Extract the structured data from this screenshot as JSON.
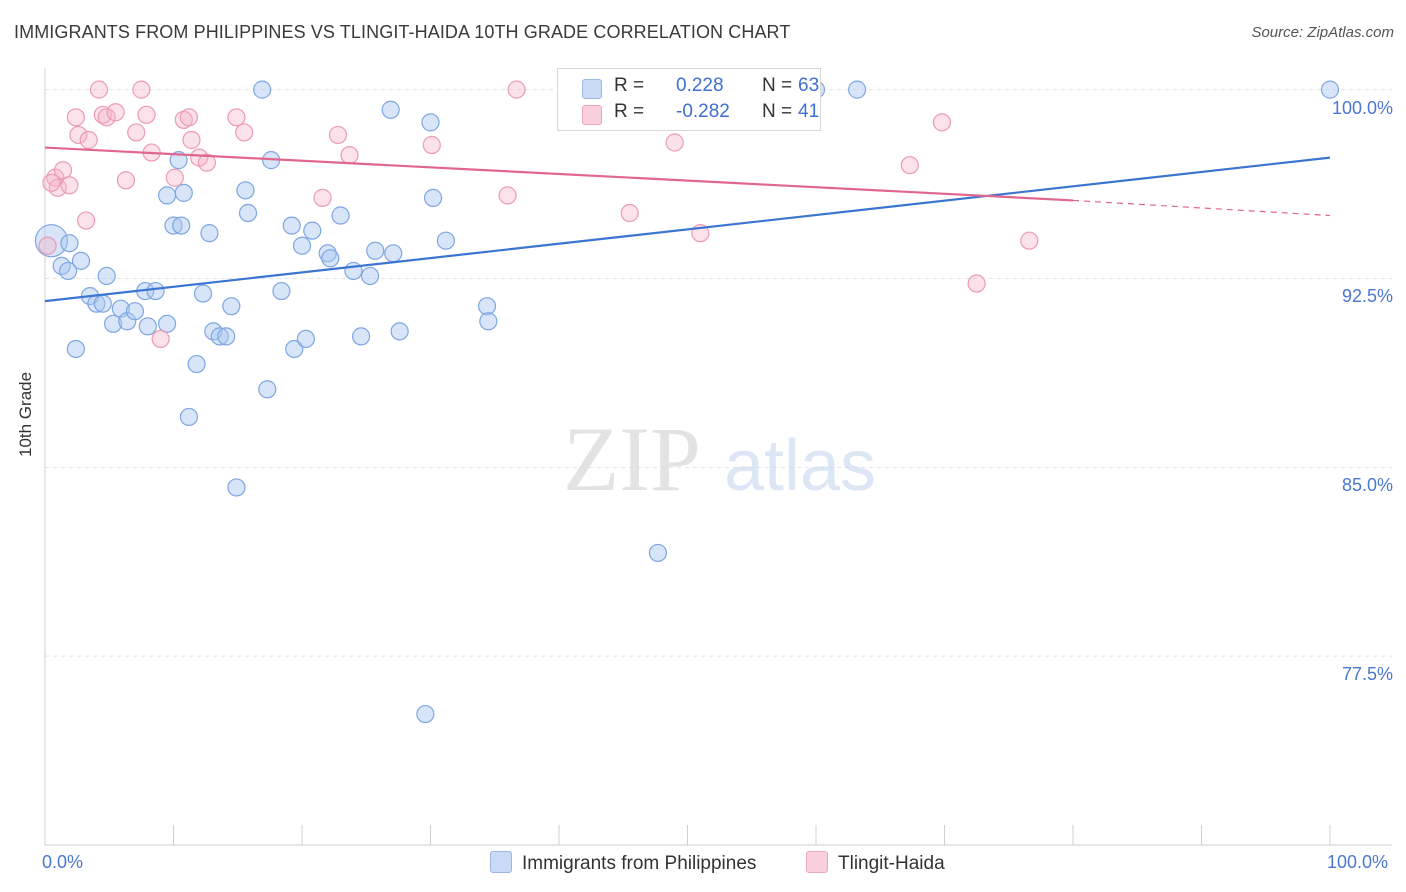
{
  "header": {
    "title": "IMMIGRANTS FROM PHILIPPINES VS TLINGIT-HAIDA 10TH GRADE CORRELATION CHART",
    "source": "Source: ZipAtlas.com"
  },
  "watermark": {
    "zip": "ZIP",
    "atlas": "atlas"
  },
  "legend": {
    "rows": [
      {
        "r_label": "R =",
        "r_value": "0.228",
        "n_label": "N =",
        "n_value": "63",
        "color": "#a9c5ef"
      },
      {
        "r_label": "R =",
        "r_value": "-0.282",
        "n_label": "N =",
        "n_value": "41",
        "color": "#f4b4c8"
      }
    ]
  },
  "bottom_legend": [
    {
      "label": "Immigrants from Philippines",
      "color": "#a9c5ef"
    },
    {
      "label": "Tlingit-Haida",
      "color": "#f4b4c8"
    }
  ],
  "colors": {
    "blue": "#3b74d1",
    "blue_fill": "#a9c5ef",
    "pink": "#e0668f",
    "pink_fill": "#f4b4c8",
    "grid": "#e3e3e3",
    "tick_text": "#4a78d0"
  },
  "chart_data": {
    "type": "scatter",
    "title": "IMMIGRANTS FROM PHILIPPINES VS TLINGIT-HAIDA 10TH GRADE CORRELATION CHART",
    "xlabel": "",
    "ylabel": "10th Grade",
    "xlim": [
      0,
      100
    ],
    "ylim": [
      70,
      100.7
    ],
    "x_tick_labels": [
      "0.0%",
      "100.0%"
    ],
    "y_ticks": [
      77.5,
      85.0,
      92.5,
      100.0
    ],
    "y_tick_labels": [
      "77.5%",
      "85.0%",
      "92.5%",
      "100.0%"
    ],
    "grid": true,
    "legend_position": "top-center",
    "series": [
      {
        "name": "Immigrants from Philippines",
        "color": "#3b74d1",
        "trend": {
          "x": [
            0,
            100
          ],
          "y": [
            91.6,
            97.3
          ],
          "dashed_from": null
        },
        "points": [
          [
            0.5,
            94.0,
            18
          ],
          [
            1.3,
            93.0,
            10
          ],
          [
            1.8,
            92.8,
            10
          ],
          [
            2.4,
            89.7,
            10
          ],
          [
            2.8,
            93.2,
            10
          ],
          [
            3.5,
            91.8,
            10
          ],
          [
            4.0,
            91.5,
            10
          ],
          [
            4.5,
            91.5,
            10
          ],
          [
            4.8,
            92.6,
            10
          ],
          [
            5.3,
            90.7,
            10
          ],
          [
            5.9,
            91.3,
            10
          ],
          [
            6.4,
            90.8,
            10
          ],
          [
            7.0,
            91.2,
            10
          ],
          [
            7.8,
            92.0,
            10
          ],
          [
            8.0,
            90.6,
            10
          ],
          [
            8.6,
            92.0,
            10
          ],
          [
            9.5,
            95.8,
            10
          ],
          [
            9.5,
            90.7,
            10
          ],
          [
            10.0,
            94.6,
            10
          ],
          [
            10.4,
            97.2,
            10
          ],
          [
            10.6,
            94.6,
            10
          ],
          [
            10.8,
            95.9,
            10
          ],
          [
            11.2,
            87.0,
            10
          ],
          [
            11.8,
            89.1,
            10
          ],
          [
            12.3,
            91.9,
            10
          ],
          [
            12.8,
            94.3,
            10
          ],
          [
            13.1,
            90.4,
            10
          ],
          [
            13.6,
            90.2,
            10
          ],
          [
            14.1,
            90.2,
            10
          ],
          [
            14.5,
            91.4,
            10
          ],
          [
            14.9,
            84.2,
            10
          ],
          [
            15.6,
            96.0,
            10
          ],
          [
            15.8,
            95.1,
            10
          ],
          [
            16.9,
            100.0,
            10
          ],
          [
            17.3,
            88.1,
            10
          ],
          [
            17.6,
            97.2,
            10
          ],
          [
            18.4,
            92.0,
            10
          ],
          [
            19.2,
            94.6,
            10
          ],
          [
            19.4,
            89.7,
            10
          ],
          [
            20.0,
            93.8,
            10
          ],
          [
            20.3,
            90.1,
            10
          ],
          [
            20.8,
            94.4,
            10
          ],
          [
            22.0,
            93.5,
            10
          ],
          [
            22.2,
            93.3,
            10
          ],
          [
            23.0,
            95.0,
            10
          ],
          [
            24.0,
            92.8,
            10
          ],
          [
            24.6,
            90.2,
            10
          ],
          [
            25.3,
            92.6,
            10
          ],
          [
            25.7,
            93.6,
            10
          ],
          [
            26.9,
            99.2,
            10
          ],
          [
            27.1,
            93.5,
            10
          ],
          [
            27.6,
            90.4,
            10
          ],
          [
            29.6,
            75.2,
            10
          ],
          [
            30.0,
            98.7,
            10
          ],
          [
            30.2,
            95.7,
            10
          ],
          [
            31.2,
            94.0,
            10
          ],
          [
            34.4,
            91.4,
            10
          ],
          [
            34.5,
            90.8,
            10
          ],
          [
            47.7,
            81.6,
            10
          ],
          [
            60.0,
            100.0,
            10
          ],
          [
            63.2,
            100.0,
            10
          ],
          [
            100.0,
            100.0,
            10
          ],
          [
            1.9,
            93.9,
            10
          ]
        ]
      },
      {
        "name": "Tlingit-Haida",
        "color": "#e0668f",
        "trend": {
          "x": [
            0,
            80
          ],
          "y": [
            97.7,
            95.6
          ],
          "dashed_to": [
            100,
            95.0
          ]
        },
        "points": [
          [
            0.2,
            93.8,
            10
          ],
          [
            0.8,
            96.5,
            10
          ],
          [
            1.0,
            96.1,
            10
          ],
          [
            1.4,
            96.8,
            10
          ],
          [
            1.9,
            96.2,
            10
          ],
          [
            2.4,
            98.9,
            10
          ],
          [
            2.6,
            98.2,
            10
          ],
          [
            3.2,
            94.8,
            10
          ],
          [
            3.4,
            98.0,
            10
          ],
          [
            4.2,
            100.0,
            10
          ],
          [
            4.5,
            99.0,
            10
          ],
          [
            4.8,
            98.9,
            10
          ],
          [
            5.5,
            99.1,
            10
          ],
          [
            6.3,
            96.4,
            10
          ],
          [
            7.1,
            98.3,
            10
          ],
          [
            7.5,
            100.0,
            10
          ],
          [
            7.9,
            99.0,
            10
          ],
          [
            8.3,
            97.5,
            10
          ],
          [
            9.0,
            90.1,
            10
          ],
          [
            10.1,
            96.5,
            10
          ],
          [
            10.8,
            98.8,
            10
          ],
          [
            11.2,
            98.9,
            10
          ],
          [
            11.4,
            98.0,
            10
          ],
          [
            12.0,
            97.3,
            10
          ],
          [
            12.6,
            97.1,
            10
          ],
          [
            14.9,
            98.9,
            10
          ],
          [
            15.5,
            98.3,
            10
          ],
          [
            21.6,
            95.7,
            10
          ],
          [
            22.8,
            98.2,
            10
          ],
          [
            23.7,
            97.4,
            10
          ],
          [
            30.1,
            97.8,
            10
          ],
          [
            36.0,
            95.8,
            10
          ],
          [
            36.7,
            100.0,
            10
          ],
          [
            45.5,
            95.1,
            10
          ],
          [
            49.0,
            97.9,
            10
          ],
          [
            51.0,
            94.3,
            10
          ],
          [
            67.3,
            97.0,
            10
          ],
          [
            69.8,
            98.7,
            10
          ],
          [
            72.5,
            92.3,
            10
          ],
          [
            76.6,
            94.0,
            10
          ],
          [
            0.5,
            96.3,
            10
          ]
        ]
      }
    ]
  }
}
